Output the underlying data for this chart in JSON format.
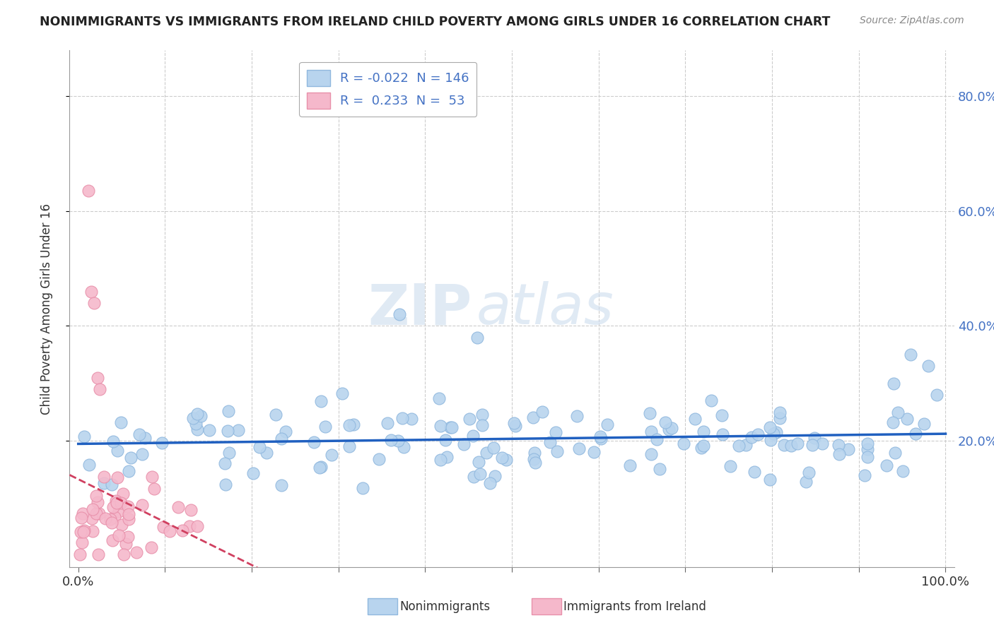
{
  "title": "NONIMMIGRANTS VS IMMIGRANTS FROM IRELAND CHILD POVERTY AMONG GIRLS UNDER 16 CORRELATION CHART",
  "source_text": "Source: ZipAtlas.com",
  "ylabel": "Child Poverty Among Girls Under 16",
  "watermark_zip": "ZIP",
  "watermark_atlas": "atlas",
  "nonimmigrant_color": "#b8d4ee",
  "nonimmigrant_edge": "#90b8de",
  "immigrant_color": "#f5b8cb",
  "immigrant_edge": "#e890aa",
  "trendline_nonimmigrant_color": "#2060c0",
  "trendline_immigrant_color": "#d04060",
  "grid_color": "#cccccc",
  "R_nonimmigrant": -0.022,
  "N_nonimmigrant": 146,
  "R_immigrant": 0.233,
  "N_immigrant": 53,
  "xlim": [
    -0.01,
    1.01
  ],
  "ylim": [
    -0.02,
    0.88
  ],
  "ytick_values": [
    0.2,
    0.4,
    0.6,
    0.8
  ],
  "xtick_values": [
    0.0,
    0.1,
    0.2,
    0.3,
    0.4,
    0.5,
    0.6,
    0.7,
    0.8,
    0.9,
    1.0
  ],
  "legend_label_ni": "R = -0.022  N = 146",
  "legend_label_im": "R =  0.233  N =  53",
  "bottom_legend_ni": "Nonimmigrants",
  "bottom_legend_im": "Immigrants from Ireland"
}
